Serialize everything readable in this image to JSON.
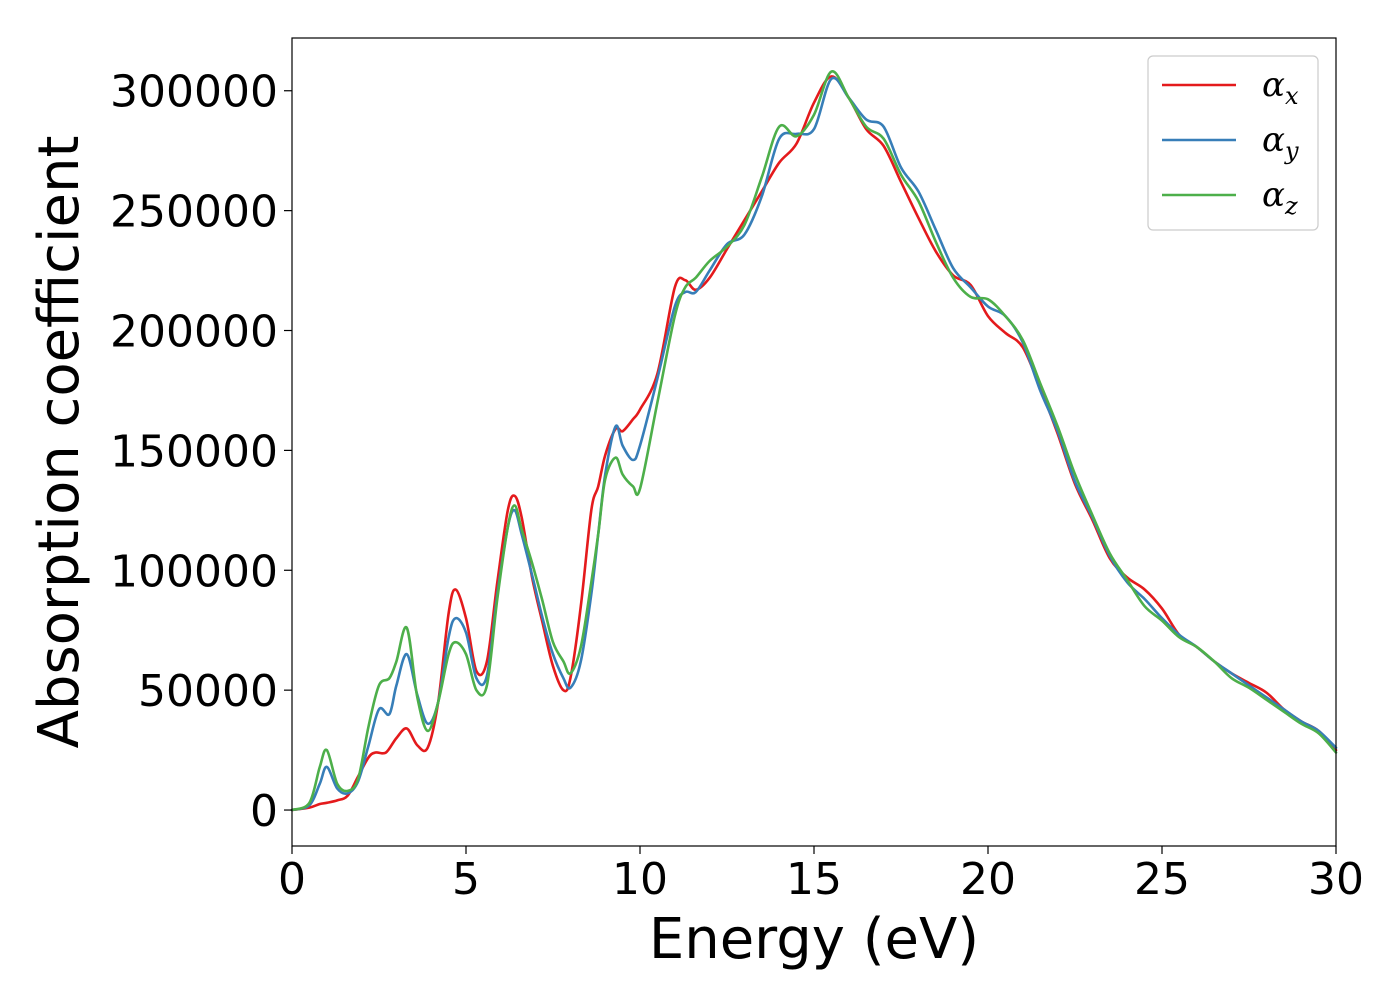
{
  "chart_data": {
    "type": "line",
    "xlabel": "Energy (eV)",
    "ylabel": "Absorption coefficient",
    "xlim": [
      0,
      30
    ],
    "ylim": [
      -15000,
      322000
    ],
    "xticks": [
      0,
      5,
      10,
      15,
      20,
      25,
      30
    ],
    "xtick_labels": [
      "0",
      "5",
      "10",
      "15",
      "20",
      "25",
      "30"
    ],
    "yticks": [
      0,
      50000,
      100000,
      150000,
      200000,
      250000,
      300000
    ],
    "ytick_labels": [
      "0",
      "50000",
      "100000",
      "150000",
      "200000",
      "250000",
      "300000"
    ],
    "grid": false,
    "legend_position": "top-right",
    "series": [
      {
        "name": "αx",
        "symbol": "α",
        "sub": "x",
        "color": "#e41a1c",
        "x": [
          0,
          0.5,
          0.8,
          1.0,
          1.3,
          1.6,
          1.9,
          2.2,
          2.4,
          2.7,
          3.0,
          3.3,
          3.6,
          3.9,
          4.2,
          4.5,
          4.7,
          5.0,
          5.3,
          5.6,
          5.9,
          6.2,
          6.4,
          6.6,
          6.9,
          7.2,
          7.5,
          7.8,
          8.0,
          8.3,
          8.6,
          8.8,
          9.0,
          9.3,
          9.5,
          9.8,
          10.0,
          10.5,
          11.0,
          11.3,
          11.6,
          12.0,
          12.5,
          13.0,
          13.5,
          14.0,
          14.5,
          15.0,
          15.5,
          16.0,
          16.5,
          17.0,
          17.5,
          18.0,
          18.5,
          19.0,
          19.5,
          20.0,
          20.5,
          21.0,
          21.5,
          22.0,
          22.5,
          23.0,
          23.5,
          24.0,
          24.5,
          25.0,
          25.5,
          26.0,
          26.5,
          27.0,
          27.5,
          28.0,
          28.5,
          29.0,
          29.5,
          30.0
        ],
        "y": [
          0,
          1000,
          2500,
          3000,
          4000,
          6000,
          14000,
          22000,
          24000,
          24000,
          30000,
          34000,
          27000,
          26000,
          45000,
          82000,
          92000,
          80000,
          58000,
          62000,
          95000,
          125000,
          131000,
          122000,
          97000,
          78000,
          60000,
          50000,
          55000,
          85000,
          125000,
          135000,
          148000,
          159000,
          158000,
          163000,
          167000,
          182000,
          218000,
          221000,
          217000,
          222000,
          234000,
          246000,
          258000,
          270000,
          278000,
          295000,
          306000,
          297000,
          284000,
          277000,
          262000,
          247000,
          233000,
          223000,
          219000,
          206000,
          199000,
          193000,
          176000,
          157000,
          136000,
          121000,
          105000,
          97000,
          92000,
          84000,
          73000,
          68000,
          62000,
          57000,
          53000,
          49000,
          42000,
          37000,
          33000,
          25000
        ]
      },
      {
        "name": "αy",
        "symbol": "α",
        "sub": "y",
        "color": "#377eb8",
        "x": [
          0,
          0.5,
          0.8,
          1.0,
          1.3,
          1.6,
          1.9,
          2.2,
          2.5,
          2.8,
          3.0,
          3.3,
          3.6,
          3.9,
          4.2,
          4.5,
          4.7,
          5.0,
          5.3,
          5.6,
          5.9,
          6.2,
          6.4,
          6.6,
          6.9,
          7.2,
          7.5,
          7.8,
          8.0,
          8.3,
          8.6,
          8.8,
          9.0,
          9.3,
          9.5,
          9.8,
          10.0,
          10.5,
          11.0,
          11.3,
          11.6,
          12.0,
          12.5,
          13.0,
          13.5,
          14.0,
          14.5,
          15.0,
          15.5,
          16.0,
          16.5,
          17.0,
          17.5,
          18.0,
          18.5,
          19.0,
          19.5,
          20.0,
          20.5,
          21.0,
          21.5,
          22.0,
          22.5,
          23.0,
          23.5,
          24.0,
          24.5,
          25.0,
          25.5,
          26.0,
          26.5,
          27.0,
          27.5,
          28.0,
          28.5,
          29.0,
          29.5,
          30.0
        ],
        "y": [
          0,
          2000,
          11000,
          18000,
          9000,
          7000,
          12000,
          27000,
          42000,
          40000,
          52000,
          65000,
          48000,
          36000,
          45000,
          72000,
          80000,
          74000,
          55000,
          56000,
          90000,
          118000,
          125000,
          115000,
          98000,
          80000,
          65000,
          55000,
          51000,
          62000,
          90000,
          115000,
          140000,
          160000,
          152000,
          146000,
          152000,
          180000,
          210000,
          216000,
          216000,
          225000,
          236000,
          240000,
          256000,
          280000,
          282000,
          284000,
          305000,
          297000,
          288000,
          285000,
          268000,
          258000,
          242000,
          226000,
          218000,
          210000,
          206000,
          195000,
          175000,
          158000,
          137000,
          122000,
          106000,
          95000,
          88000,
          80000,
          73000,
          68000,
          62000,
          57000,
          52000,
          47000,
          42000,
          37000,
          33000,
          26000
        ]
      },
      {
        "name": "αz",
        "symbol": "α",
        "sub": "z",
        "color": "#4daf4a",
        "x": [
          0,
          0.5,
          0.8,
          1.0,
          1.3,
          1.6,
          1.9,
          2.2,
          2.5,
          2.8,
          3.0,
          3.3,
          3.6,
          3.9,
          4.2,
          4.5,
          4.7,
          5.0,
          5.3,
          5.6,
          5.9,
          6.2,
          6.4,
          6.6,
          6.9,
          7.2,
          7.5,
          7.8,
          8.0,
          8.3,
          8.6,
          8.8,
          9.0,
          9.3,
          9.5,
          9.8,
          10.0,
          10.5,
          11.0,
          11.3,
          11.6,
          12.0,
          12.5,
          13.0,
          13.5,
          14.0,
          14.5,
          15.0,
          15.5,
          16.0,
          16.5,
          17.0,
          17.5,
          18.0,
          18.5,
          19.0,
          19.5,
          20.0,
          20.5,
          21.0,
          21.5,
          22.0,
          22.5,
          23.0,
          23.5,
          24.0,
          24.5,
          25.0,
          25.5,
          26.0,
          26.5,
          27.0,
          27.5,
          28.0,
          28.5,
          29.0,
          29.5,
          30.0
        ],
        "y": [
          0,
          3000,
          18000,
          25000,
          11000,
          8000,
          13000,
          35000,
          52000,
          55000,
          62000,
          76000,
          47000,
          33000,
          45000,
          65000,
          70000,
          65000,
          50000,
          52000,
          88000,
          118000,
          127000,
          117000,
          103000,
          87000,
          70000,
          62000,
          57000,
          68000,
          95000,
          115000,
          138000,
          147000,
          140000,
          135000,
          134000,
          170000,
          206000,
          218000,
          222000,
          229000,
          235000,
          244000,
          264000,
          285000,
          281000,
          290000,
          308000,
          297000,
          285000,
          280000,
          265000,
          254000,
          237000,
          222000,
          214000,
          213000,
          206000,
          196000,
          178000,
          160000,
          140000,
          123000,
          107000,
          96000,
          85000,
          79000,
          72000,
          68000,
          62000,
          55000,
          51000,
          46000,
          41000,
          36000,
          32000,
          24000
        ]
      }
    ]
  }
}
